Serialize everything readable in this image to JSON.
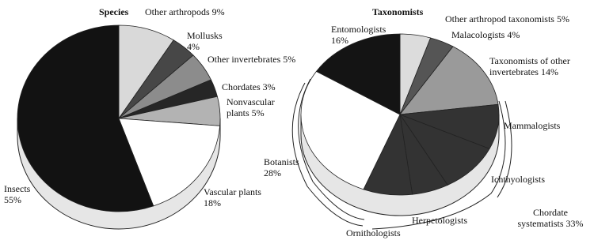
{
  "chart_data": [
    {
      "type": "pie",
      "title": "Species",
      "categories": [
        "Other arthropods",
        "Mollusks",
        "Other invertebrates",
        "Chordates",
        "Nonvascular plants",
        "Vascular plants",
        "Insects"
      ],
      "values": [
        9,
        4,
        5,
        3,
        5,
        18,
        55
      ],
      "value_labels": [
        "9%",
        "4%",
        "5%",
        "3%",
        "5%",
        "18%",
        "55%"
      ],
      "colors": [
        "#d9d9d9",
        "#474747",
        "#8c8c8c",
        "#262626",
        "#b3b3b3",
        "#ffffff",
        "#121212"
      ]
    },
    {
      "type": "pie",
      "title": "Taxonomists",
      "categories": [
        "Other arthropod taxonomists",
        "Malacologists",
        "Taxonomists of other invertebrates",
        "Mammalogists",
        "Ichthyologists",
        "Herpetologists",
        "Ornithologists",
        "Botanists",
        "Entomologists"
      ],
      "values": [
        5,
        4,
        14,
        9,
        10,
        6,
        8,
        28,
        16
      ],
      "value_labels": [
        "5%",
        "4%",
        "14%",
        null,
        null,
        null,
        null,
        "28%",
        "16%"
      ],
      "colors": [
        "#dcdcdc",
        "#555555",
        "#9a9a9a",
        "#333333",
        "#333333",
        "#333333",
        "#333333",
        "#ffffff",
        "#141414"
      ],
      "groups": [
        {
          "label": "Chordate systematists",
          "value": 33,
          "value_label": "33%"
        }
      ]
    }
  ]
}
